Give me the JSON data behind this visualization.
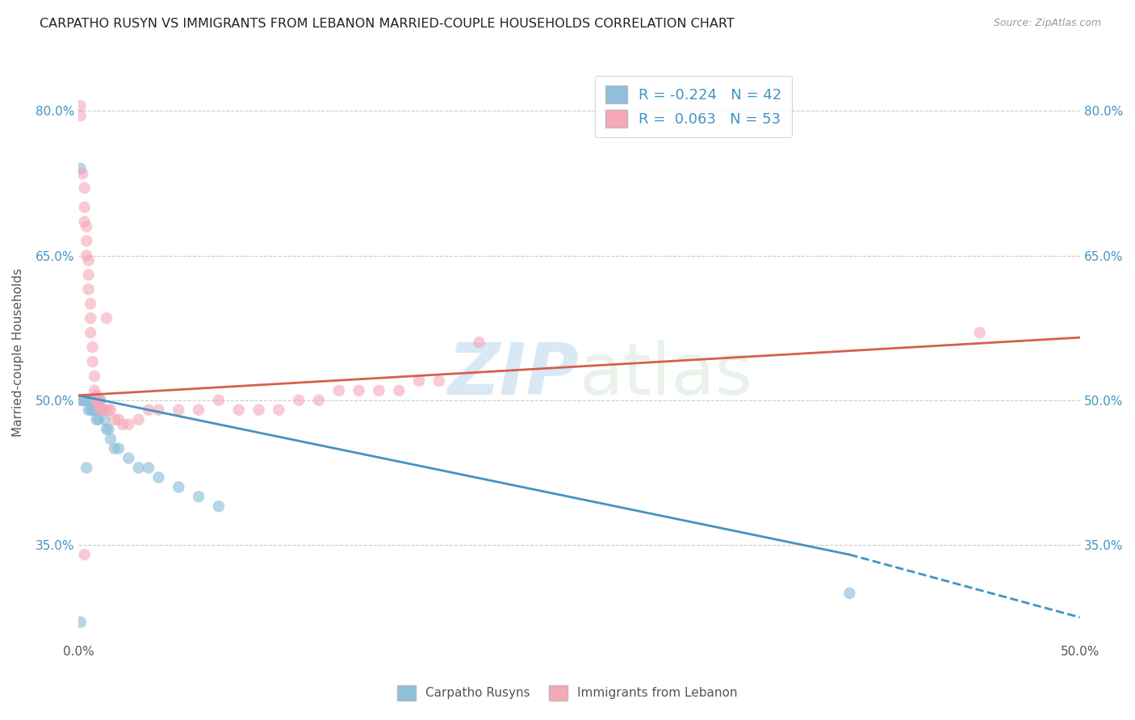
{
  "title": "CARPATHO RUSYN VS IMMIGRANTS FROM LEBANON MARRIED-COUPLE HOUSEHOLDS CORRELATION CHART",
  "source": "Source: ZipAtlas.com",
  "ylabel": "Married-couple Households",
  "xlabel": "",
  "xlim": [
    0.0,
    0.5
  ],
  "ylim": [
    0.25,
    0.85
  ],
  "yticks": [
    0.35,
    0.5,
    0.65,
    0.8
  ],
  "ytick_labels": [
    "35.0%",
    "50.0%",
    "65.0%",
    "80.0%"
  ],
  "xticks": [
    0.0,
    0.1,
    0.2,
    0.3,
    0.4,
    0.5
  ],
  "xtick_labels": [
    "0.0%",
    "",
    "",
    "",
    "",
    "50.0%"
  ],
  "blue_R": "-0.224",
  "blue_N": "42",
  "pink_R": "0.063",
  "pink_N": "53",
  "blue_color": "#8fbfda",
  "pink_color": "#f5a8b8",
  "blue_line_color": "#4393c3",
  "pink_line_color": "#d6604d",
  "watermark_zip": "ZIP",
  "watermark_atlas": "atlas",
  "background_color": "#ffffff",
  "grid_color": "#cccccc",
  "blue_line_x0": 0.0,
  "blue_line_y0": 0.505,
  "blue_line_x1": 0.385,
  "blue_line_y1": 0.34,
  "blue_line_xdash0": 0.385,
  "blue_line_ydash0": 0.34,
  "blue_line_xdash1": 0.5,
  "blue_line_ydash1": 0.275,
  "pink_line_x0": 0.0,
  "pink_line_y0": 0.505,
  "pink_line_x1": 0.5,
  "pink_line_y1": 0.565,
  "blue_x": [
    0.001,
    0.001,
    0.002,
    0.003,
    0.004,
    0.004,
    0.005,
    0.005,
    0.005,
    0.006,
    0.006,
    0.006,
    0.007,
    0.007,
    0.007,
    0.008,
    0.008,
    0.008,
    0.009,
    0.009,
    0.009,
    0.01,
    0.01,
    0.01,
    0.011,
    0.011,
    0.012,
    0.013,
    0.014,
    0.015,
    0.016,
    0.018,
    0.02,
    0.025,
    0.03,
    0.035,
    0.04,
    0.05,
    0.06,
    0.07,
    0.385,
    0.001
  ],
  "blue_y": [
    0.74,
    0.5,
    0.5,
    0.5,
    0.5,
    0.43,
    0.5,
    0.5,
    0.49,
    0.5,
    0.5,
    0.49,
    0.5,
    0.5,
    0.49,
    0.5,
    0.49,
    0.49,
    0.5,
    0.49,
    0.48,
    0.5,
    0.49,
    0.48,
    0.5,
    0.49,
    0.49,
    0.48,
    0.47,
    0.47,
    0.46,
    0.45,
    0.45,
    0.44,
    0.43,
    0.43,
    0.42,
    0.41,
    0.4,
    0.39,
    0.3,
    0.27
  ],
  "pink_x": [
    0.001,
    0.001,
    0.002,
    0.003,
    0.003,
    0.003,
    0.004,
    0.004,
    0.004,
    0.005,
    0.005,
    0.005,
    0.006,
    0.006,
    0.006,
    0.007,
    0.007,
    0.008,
    0.008,
    0.009,
    0.009,
    0.01,
    0.01,
    0.011,
    0.012,
    0.013,
    0.014,
    0.015,
    0.016,
    0.018,
    0.02,
    0.022,
    0.025,
    0.03,
    0.035,
    0.04,
    0.05,
    0.06,
    0.07,
    0.08,
    0.09,
    0.1,
    0.11,
    0.12,
    0.13,
    0.14,
    0.15,
    0.16,
    0.17,
    0.18,
    0.2,
    0.45,
    0.003
  ],
  "pink_y": [
    0.805,
    0.795,
    0.735,
    0.72,
    0.7,
    0.685,
    0.68,
    0.665,
    0.65,
    0.645,
    0.63,
    0.615,
    0.6,
    0.585,
    0.57,
    0.555,
    0.54,
    0.525,
    0.51,
    0.505,
    0.5,
    0.5,
    0.495,
    0.49,
    0.49,
    0.49,
    0.585,
    0.49,
    0.49,
    0.48,
    0.48,
    0.475,
    0.475,
    0.48,
    0.49,
    0.49,
    0.49,
    0.49,
    0.5,
    0.49,
    0.49,
    0.49,
    0.5,
    0.5,
    0.51,
    0.51,
    0.51,
    0.51,
    0.52,
    0.52,
    0.56,
    0.57,
    0.34
  ]
}
